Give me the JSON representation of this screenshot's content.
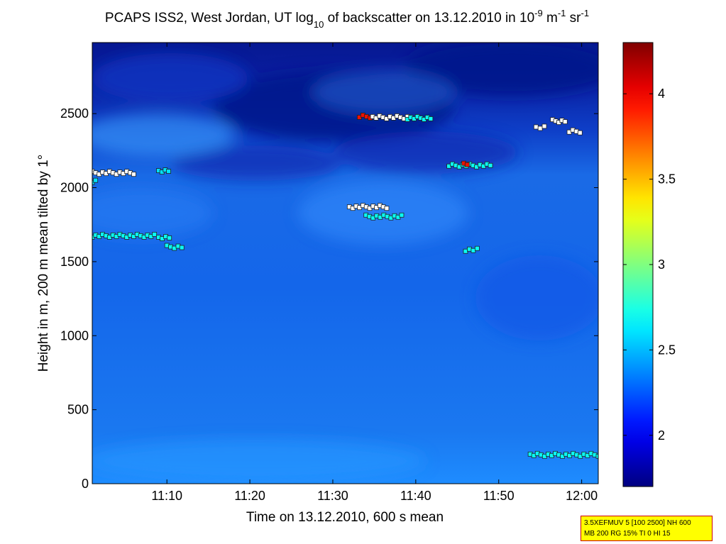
{
  "chart_data": {
    "type": "heatmap",
    "title": {
      "part1": "PCAPS ISS2, West Jordan, UT log",
      "sub1": "10",
      "part2": " of backscatter on 13.12.2010 in 10",
      "sup1": "-9",
      "part3": " m",
      "sup2": "-1",
      "part4": " sr",
      "sup3": "-1"
    },
    "xlabel": "Time on 13.12.2010, 600 s mean",
    "ylabel": "Height in m, 200 m mean tilted by 1°",
    "xlim": [
      "11:01",
      "12:02"
    ],
    "ylim": [
      0,
      2980
    ],
    "x_ticks": [
      {
        "label": "11:10",
        "minute": 10
      },
      {
        "label": "11:20",
        "minute": 20
      },
      {
        "label": "11:30",
        "minute": 30
      },
      {
        "label": "11:40",
        "minute": 40
      },
      {
        "label": "11:50",
        "minute": 50
      },
      {
        "label": "12:00",
        "minute": 60
      }
    ],
    "y_ticks": [
      {
        "label": "0",
        "value": 0
      },
      {
        "label": "500",
        "value": 500
      },
      {
        "label": "1000",
        "value": 1000
      },
      {
        "label": "1500",
        "value": 1500
      },
      {
        "label": "2000",
        "value": 2000
      },
      {
        "label": "2500",
        "value": 2500
      }
    ],
    "colorbar": {
      "colormap": "jet",
      "range": [
        1.7,
        4.3
      ],
      "ticks": [
        {
          "label": "2",
          "value": 2
        },
        {
          "label": "2.5",
          "value": 2.5
        },
        {
          "label": "3",
          "value": 3
        },
        {
          "label": "3.5",
          "value": 3.5
        },
        {
          "label": "4",
          "value": 4
        }
      ]
    },
    "background": {
      "description_levels": {
        "near_surface": 2.35,
        "mid": 2.2,
        "high_dark_band": 1.8
      }
    },
    "cloud_markers": [
      {
        "t_start": 1.0,
        "t_end": 6.0,
        "height": 2100,
        "level": 4.2,
        "style": "white"
      },
      {
        "t_start": 1.0,
        "t_end": 1.4,
        "height": 2040,
        "level": 2.6,
        "style": "cyan"
      },
      {
        "t_start": 9.0,
        "t_end": 10.2,
        "height": 2110,
        "level": 2.6,
        "style": "cyan"
      },
      {
        "t_start": 1.0,
        "t_end": 8.5,
        "height": 1675,
        "level": 2.7,
        "style": "cyan"
      },
      {
        "t_start": 9.0,
        "t_end": 10.3,
        "height": 1665,
        "level": 2.7,
        "style": "cyan"
      },
      {
        "t_start": 10.0,
        "t_end": 11.8,
        "height": 1600,
        "level": 2.7,
        "style": "cyan"
      },
      {
        "t_start": 33.2,
        "t_end": 34.5,
        "height": 2480,
        "level": 4.2,
        "style": "red"
      },
      {
        "t_start": 34.8,
        "t_end": 39.0,
        "height": 2475,
        "level": 2.3,
        "style": "white"
      },
      {
        "t_start": 39.0,
        "t_end": 41.8,
        "height": 2470,
        "level": 2.7,
        "style": "cyan"
      },
      {
        "t_start": 32.0,
        "t_end": 36.5,
        "height": 1870,
        "level": 2.5,
        "style": "white"
      },
      {
        "t_start": 34.0,
        "t_end": 38.3,
        "height": 1805,
        "level": 2.7,
        "style": "cyan"
      },
      {
        "t_start": 44.0,
        "t_end": 49.0,
        "height": 2150,
        "level": 2.7,
        "style": "cyan"
      },
      {
        "t_start": 45.8,
        "t_end": 46.2,
        "height": 2160,
        "level": 4.2,
        "style": "red"
      },
      {
        "t_start": 46.0,
        "t_end": 47.4,
        "height": 1580,
        "level": 2.7,
        "style": "cyan"
      },
      {
        "t_start": 54.5,
        "t_end": 55.5,
        "height": 2410,
        "level": 2.3,
        "style": "white"
      },
      {
        "t_start": 56.5,
        "t_end": 58.0,
        "height": 2450,
        "level": 2.3,
        "style": "white"
      },
      {
        "t_start": 58.5,
        "t_end": 59.8,
        "height": 2380,
        "level": 2.3,
        "style": "white"
      },
      {
        "t_start": 53.8,
        "t_end": 62.0,
        "height": 195,
        "level": 2.7,
        "style": "cyan"
      }
    ]
  },
  "annotation": {
    "line1": "3.5XEFMUV 5 [100 2500] NH 600",
    "line2": "MB 200 RG 15% TI 0 HI 15",
    "background_color": "#ffff00",
    "border_color": "#cc0000"
  }
}
